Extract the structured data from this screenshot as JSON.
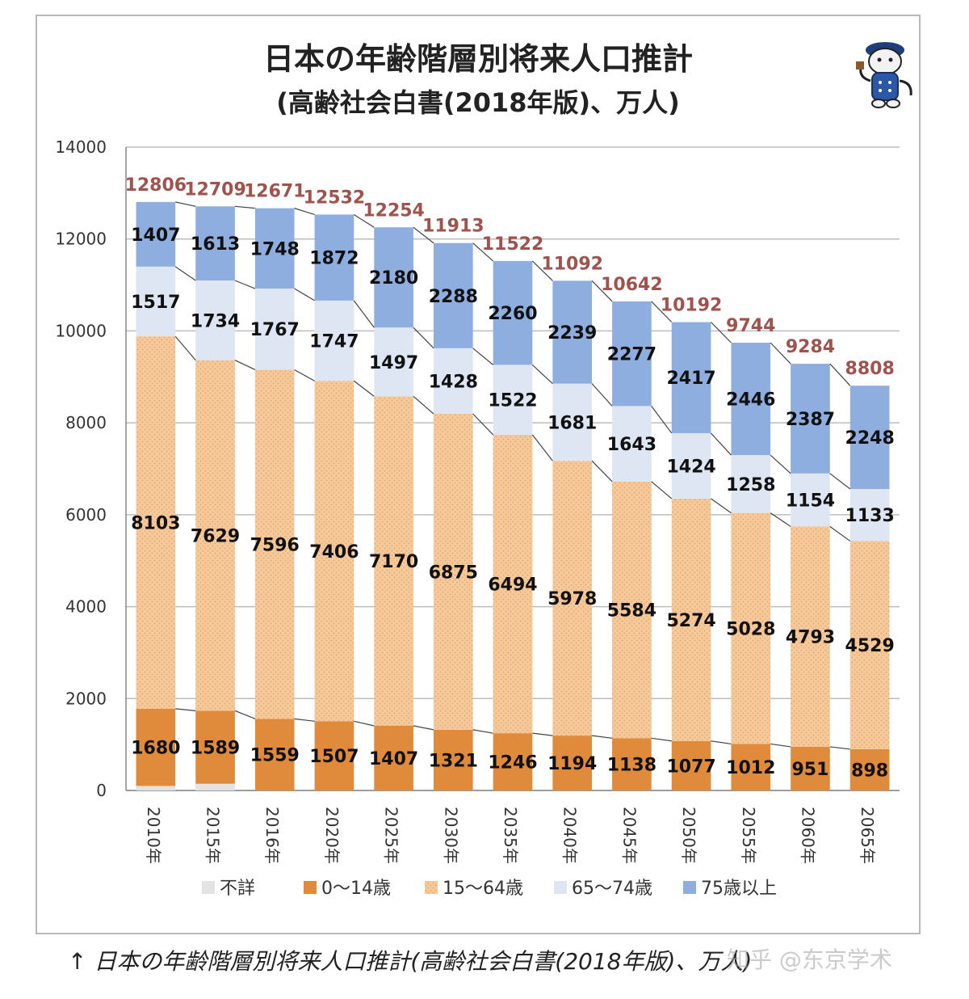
{
  "chart_data": {
    "type": "bar",
    "stacked": true,
    "title": "日本の年齢階層別将来人口推計",
    "subtitle": "(高齢社会白書(2018年版)、万人)",
    "ylim": [
      0,
      14000
    ],
    "yticks": [
      0,
      2000,
      4000,
      6000,
      8000,
      10000,
      12000,
      14000
    ],
    "grid": true,
    "legend_position": "bottom",
    "categories": [
      "2010年",
      "2015年",
      "2016年",
      "2020年",
      "2025年",
      "2030年",
      "2035年",
      "2040年",
      "2045年",
      "2050年",
      "2055年",
      "2060年",
      "2065年"
    ],
    "series": [
      {
        "name": "不詳",
        "color": "#e3e3e3",
        "values": [
          99,
          146,
          0,
          0,
          0,
          0,
          0,
          0,
          0,
          0,
          0,
          0,
          0
        ],
        "show_labels": false
      },
      {
        "name": "0〜14歳",
        "color": "#e08a3c",
        "values": [
          1680,
          1589,
          1559,
          1507,
          1407,
          1321,
          1246,
          1194,
          1138,
          1077,
          1012,
          951,
          898
        ],
        "show_labels": true
      },
      {
        "name": "15〜64歳",
        "color": "#f6c99a",
        "values": [
          8103,
          7629,
          7596,
          7406,
          7170,
          6875,
          6494,
          5978,
          5584,
          5274,
          5028,
          4793,
          4529
        ],
        "show_labels": true
      },
      {
        "name": "65〜74歳",
        "color": "#dde6f2",
        "values": [
          1517,
          1734,
          1767,
          1747,
          1497,
          1428,
          1522,
          1681,
          1643,
          1424,
          1258,
          1154,
          1133
        ],
        "show_labels": true
      },
      {
        "name": "75歳以上",
        "color": "#8eaee0",
        "values": [
          1407,
          1613,
          1748,
          1872,
          2180,
          2288,
          2260,
          2239,
          2277,
          2417,
          2446,
          2387,
          2248
        ],
        "show_labels": true
      }
    ],
    "totals": [
      12806,
      12709,
      12671,
      12532,
      12254,
      11913,
      11522,
      11092,
      10642,
      10192,
      9744,
      9284,
      8808
    ]
  },
  "caption": "↑ 日本の年齢階層別将来人口推計(高齢社会白書(2018年版)、万人)",
  "watermark": "知乎 @东京学术",
  "mascot": "cat-mascot-icon"
}
